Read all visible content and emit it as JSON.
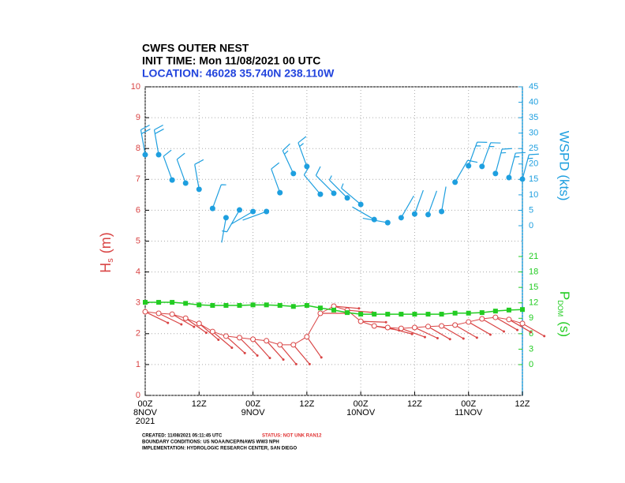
{
  "chart_data": {
    "type": "line",
    "title": "CWFS OUTER NEST",
    "subtitle": "INIT TIME: Mon 11/08/2021 00 UTC",
    "location": "LOCATION: 46028 35.740N 238.110W",
    "x": [
      0,
      3,
      6,
      9,
      12,
      15,
      18,
      21,
      24,
      27,
      30,
      33,
      36,
      39,
      42,
      45,
      48,
      51,
      54,
      57,
      60,
      63,
      66,
      69,
      72,
      75,
      78,
      81,
      84
    ],
    "xlim": [
      0,
      84
    ],
    "xticks": [
      {
        "value": 0,
        "label": "00Z"
      },
      {
        "value": 12,
        "label": "12Z"
      },
      {
        "value": 24,
        "label": "00Z"
      },
      {
        "value": 36,
        "label": "12Z"
      },
      {
        "value": 48,
        "label": "00Z"
      },
      {
        "value": 60,
        "label": "12Z"
      },
      {
        "value": 72,
        "label": "00Z"
      },
      {
        "value": 84,
        "label": "12Z"
      }
    ],
    "date_labels": [
      {
        "value": 0,
        "label": "8NOV"
      },
      {
        "value": 24,
        "label": "9NOV"
      },
      {
        "value": 48,
        "label": "10NOV"
      },
      {
        "value": 72,
        "label": "11NOV"
      }
    ],
    "year_label": "2021",
    "grid": true,
    "ylim": [
      0,
      10
    ],
    "yticks": [
      0,
      1,
      2,
      3,
      4,
      5,
      6,
      7,
      8,
      9,
      10
    ],
    "y_label": {
      "main": "H",
      "sub": "s",
      "unit": "(m)"
    },
    "y2lim": [
      0,
      45
    ],
    "y2ticks": [
      0,
      5,
      10,
      15,
      20,
      25,
      30,
      35,
      40,
      45
    ],
    "y2_label": "WSPD (kts)",
    "y3lim": [
      0,
      21
    ],
    "y3ticks": [
      0,
      3,
      6,
      9,
      12,
      15,
      18,
      21
    ],
    "y3_label": {
      "main": "P",
      "sub": "DOM",
      "unit": "(s)"
    },
    "hs": {
      "color": "#d94444",
      "axis": "y",
      "values": [
        2.71,
        2.66,
        2.63,
        2.5,
        2.33,
        2.07,
        1.92,
        1.87,
        1.82,
        1.77,
        1.64,
        1.64,
        1.9,
        2.66,
        2.89,
        2.76,
        2.4,
        2.25,
        2.2,
        2.17,
        2.2,
        2.23,
        2.25,
        2.28,
        2.38,
        2.48,
        2.53,
        2.46,
        2.33
      ],
      "directions": [
        296,
        296,
        300,
        305,
        310,
        310,
        312,
        315,
        318,
        318,
        320,
        320,
        325,
        270,
        275,
        275,
        272,
        280,
        285,
        290,
        295,
        300,
        300,
        300,
        300,
        300,
        300,
        300,
        300
      ]
    },
    "wspd": {
      "color": "#1e9fdf",
      "axis": "y2",
      "values": [
        23,
        23,
        14.8,
        13.8,
        11.8,
        5.6,
        2.6,
        5.1,
        4.6,
        4.6,
        10.7,
        16.9,
        19.2,
        10.2,
        10.5,
        9,
        6.9,
        2,
        1,
        2.6,
        3.8,
        3.6,
        4.6,
        14.1,
        19.4,
        19.2,
        16.9,
        15.6,
        15.1
      ],
      "directions": [
        350,
        350,
        340,
        340,
        350,
        20,
        190,
        210,
        240,
        250,
        340,
        335,
        340,
        320,
        315,
        315,
        310,
        300,
        280,
        30,
        20,
        20,
        10,
        30,
        20,
        20,
        15,
        15,
        15
      ]
    },
    "pdom": {
      "color": "#22cc22",
      "axis": "y3",
      "values": [
        12.1,
        12.1,
        12.1,
        11.9,
        11.6,
        11.5,
        11.5,
        11.5,
        11.6,
        11.6,
        11.5,
        11.3,
        11.5,
        11.0,
        10.6,
        10.1,
        9.8,
        9.8,
        9.8,
        9.8,
        9.8,
        9.8,
        9.8,
        10.0,
        10.0,
        10.1,
        10.4,
        10.6,
        10.7
      ]
    },
    "footer": {
      "created": "CREATED: 11/08/2021 05:11:45 UTC",
      "status": "STATUS: NOT UNK RAN12",
      "boundary": "BOUNDARY CONDITIONS: US NOAA/NCEP/NAWS WW3 NPH",
      "implementation": "IMPLEMENTATION: HYDROLOGIC RESEARCH CENTER, SAN DIEGO"
    }
  }
}
